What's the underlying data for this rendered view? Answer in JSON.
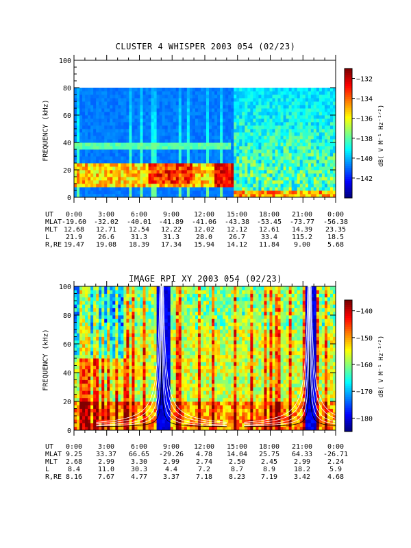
{
  "chart_data": [
    {
      "type": "heatmap",
      "title": "CLUSTER 4 WHISPER 2003 054 (02/23)",
      "ylabel": "FREQUENCY (kHz)",
      "ylim": [
        0,
        100
      ],
      "yticks": [
        "0",
        "20",
        "40",
        "60",
        "80",
        "100"
      ],
      "colorbar_label": "dB( V M⁻¹ Hz⁻¹ᐟ²)",
      "colorbar_range": [
        -144,
        -131
      ],
      "colorbar_ticks": [
        "-132",
        "-134",
        "-136",
        "-138",
        "-140",
        "-142"
      ],
      "data_top_khz": 80,
      "ephemeris": {
        "labels": [
          "UT",
          "MLAT",
          "MLT",
          "L",
          "R,RE"
        ],
        "columns": [
          [
            "0:00",
            "-19.60",
            "12.68",
            "21.9",
            "19.47"
          ],
          [
            "3:00",
            "-32.02",
            "12.71",
            "26.6",
            "19.08"
          ],
          [
            "6:00",
            "-40.01",
            "12.54",
            "31.3",
            "18.39"
          ],
          [
            "9:00",
            "-41.89",
            "12.22",
            "31.3",
            "17.34"
          ],
          [
            "12:00",
            "-41.06",
            "12.02",
            "28.0",
            "15.94"
          ],
          [
            "15:00",
            "-43.38",
            "12.12",
            "26.7",
            "14.12"
          ],
          [
            "18:00",
            "-53.45",
            "12.61",
            "33.4",
            "11.84"
          ],
          [
            "21:00",
            "-73.77",
            "14.39",
            "115.2",
            "9.00"
          ],
          [
            "0:00",
            "-56.38",
            "23.35",
            "18.5",
            "5.68"
          ]
        ]
      }
    },
    {
      "type": "heatmap",
      "title": "IMAGE RPI XY 2003 054 (02/23)",
      "ylabel": "FREQUENCY (kHz)",
      "ylim": [
        0,
        100
      ],
      "yticks": [
        "0",
        "20",
        "40",
        "60",
        "80",
        "100"
      ],
      "colorbar_label": "dB( V M⁻¹ Hz⁻¹ᐟ²)",
      "colorbar_range": [
        -185,
        -136
      ],
      "colorbar_ticks": [
        "-140",
        "-150",
        "-160",
        "-170",
        "-180"
      ],
      "ephemeris": {
        "labels": [
          "UT",
          "MLAT",
          "MLT",
          "L",
          "R,RE"
        ],
        "columns": [
          [
            "0:00",
            "9.25",
            "2.68",
            "8.4",
            "8.16"
          ],
          [
            "3:00",
            "33.37",
            "2.99",
            "11.0",
            "7.67"
          ],
          [
            "6:00",
            "66.65",
            "3.30",
            "30.3",
            "4.77"
          ],
          [
            "9:00",
            "-29.26",
            "2.99",
            "4.4",
            "3.37"
          ],
          [
            "12:00",
            "4.78",
            "2.74",
            "7.2",
            "7.18"
          ],
          [
            "15:00",
            "14.04",
            "2.50",
            "8.7",
            "8.23"
          ],
          [
            "18:00",
            "25.75",
            "2.45",
            "8.9",
            "7.19"
          ],
          [
            "21:00",
            "64.33",
            "2.99",
            "18.2",
            "3.42"
          ],
          [
            "0:00",
            "-26.71",
            "2.24",
            "5.9",
            "4.68"
          ]
        ]
      }
    }
  ]
}
